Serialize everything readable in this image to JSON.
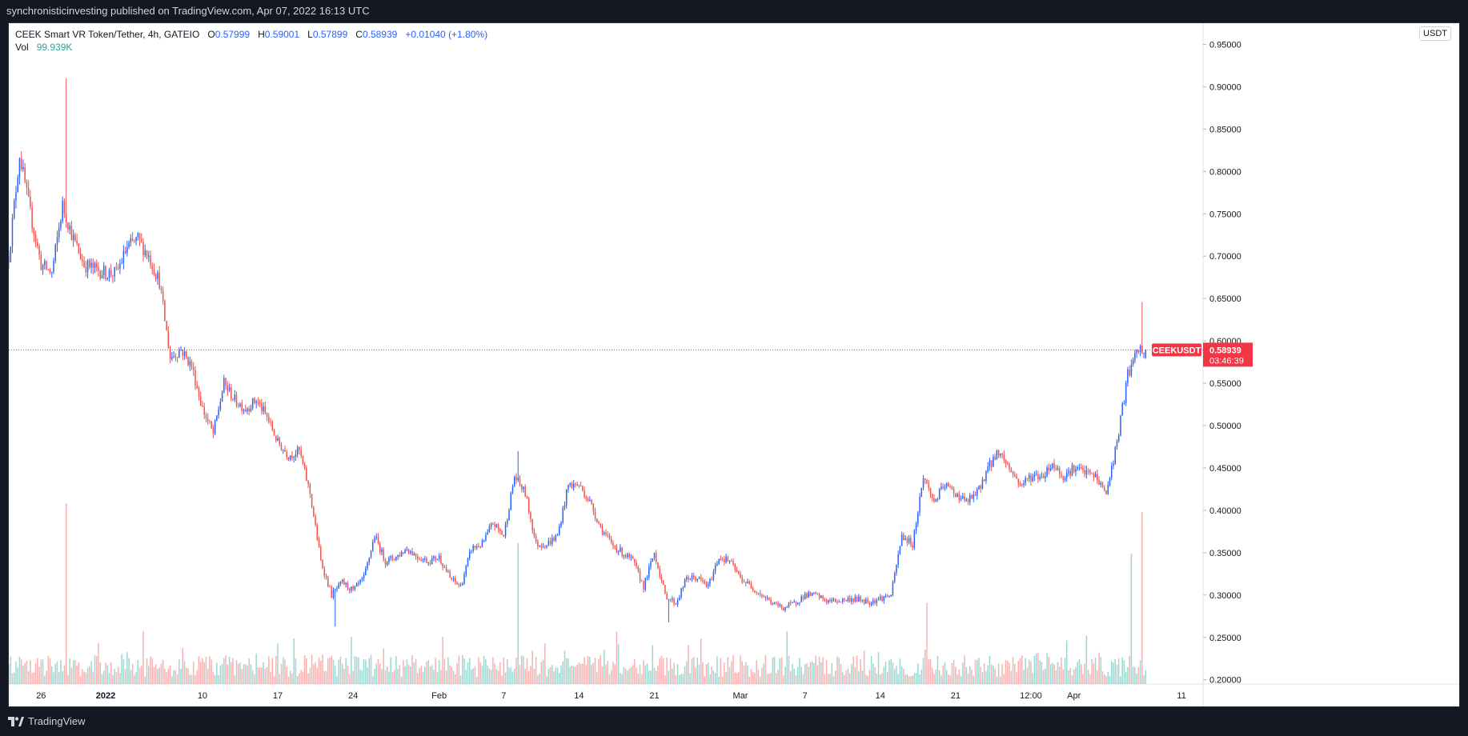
{
  "header": {
    "publisher_line": "synchronisticinvesting published on TradingView.com, Apr 07, 2022 16:13 UTC"
  },
  "legend": {
    "symbol_desc": "CEEK Smart VR Token/Tether, 4h, GATEIO",
    "o_label": "O",
    "o_value": "0.57999",
    "h_label": "H",
    "h_value": "0.59001",
    "l_label": "L",
    "l_value": "0.57899",
    "c_label": "C",
    "c_value": "0.58939",
    "change": "+0.01040 (+1.80%)",
    "vol_label": "Vol",
    "vol_value": "99.939K"
  },
  "price_badge": {
    "symbol": "CEEKUSDT",
    "price": "0.58939",
    "countdown": "03:46:39"
  },
  "footer": {
    "brand": "TradingView"
  },
  "colors": {
    "up": "#2962ff",
    "down": "#ef5350",
    "vol_up": "#26a69a",
    "vol_down": "#ef5350",
    "last_price": "#f23645",
    "text": "#131722",
    "page_bg": "#131722",
    "chart_bg": "#ffffff"
  },
  "chart_data": {
    "type": "candlestick",
    "title": "CEEK Smart VR Token/Tether, 4h, GATEIO",
    "currency_label": "USDT",
    "ylim": [
      0.195,
      0.975
    ],
    "y_ticks": [
      "0.20000",
      "0.25000",
      "0.30000",
      "0.35000",
      "0.40000",
      "0.45000",
      "0.50000",
      "0.55000",
      "0.60000",
      "0.65000",
      "0.70000",
      "0.75000",
      "0.80000",
      "0.85000",
      "0.90000",
      "0.95000"
    ],
    "x_ticks": [
      {
        "label": "26",
        "date": "2021-12-26"
      },
      {
        "label": "2022",
        "date": "2022-01-01"
      },
      {
        "label": "10",
        "date": "2022-01-10"
      },
      {
        "label": "17",
        "date": "2022-01-17"
      },
      {
        "label": "24",
        "date": "2022-01-24"
      },
      {
        "label": "Feb",
        "date": "2022-02-01"
      },
      {
        "label": "7",
        "date": "2022-02-07"
      },
      {
        "label": "14",
        "date": "2022-02-14"
      },
      {
        "label": "21",
        "date": "2022-02-21"
      },
      {
        "label": "Mar",
        "date": "2022-03-01"
      },
      {
        "label": "7",
        "date": "2022-03-07"
      },
      {
        "label": "14",
        "date": "2022-03-14"
      },
      {
        "label": "21",
        "date": "2022-03-21"
      },
      {
        "label": "12:00",
        "date": "2022-03-28"
      },
      {
        "label": "Apr",
        "date": "2022-04-01"
      },
      {
        "label": "11",
        "date": "2022-04-11"
      }
    ],
    "last_price": 0.58939,
    "price_keypoints": [
      [
        "2021-12-23",
        0.7
      ],
      [
        "2021-12-24",
        0.82
      ],
      [
        "2021-12-25",
        0.75
      ],
      [
        "2021-12-26",
        0.69
      ],
      [
        "2021-12-27",
        0.68
      ],
      [
        "2021-12-28",
        0.76
      ],
      [
        "2021-12-29",
        0.72
      ],
      [
        "2021-12-30",
        0.69
      ],
      [
        "2022-01-01",
        0.68
      ],
      [
        "2022-01-02",
        0.68
      ],
      [
        "2022-01-03",
        0.71
      ],
      [
        "2022-01-04",
        0.72
      ],
      [
        "2022-01-05",
        0.7
      ],
      [
        "2022-01-06",
        0.67
      ],
      [
        "2022-01-07",
        0.58
      ],
      [
        "2022-01-08",
        0.59
      ],
      [
        "2022-01-09",
        0.57
      ],
      [
        "2022-01-10",
        0.52
      ],
      [
        "2022-01-11",
        0.49
      ],
      [
        "2022-01-12",
        0.55
      ],
      [
        "2022-01-13",
        0.53
      ],
      [
        "2022-01-14",
        0.52
      ],
      [
        "2022-01-15",
        0.53
      ],
      [
        "2022-01-16",
        0.51
      ],
      [
        "2022-01-17",
        0.48
      ],
      [
        "2022-01-18",
        0.465
      ],
      [
        "2022-01-19",
        0.47
      ],
      [
        "2022-01-20",
        0.42
      ],
      [
        "2022-01-21",
        0.34
      ],
      [
        "2022-01-22",
        0.3
      ],
      [
        "2022-01-23",
        0.315
      ],
      [
        "2022-01-24",
        0.305
      ],
      [
        "2022-01-25",
        0.32
      ],
      [
        "2022-01-26",
        0.37
      ],
      [
        "2022-01-27",
        0.34
      ],
      [
        "2022-01-28",
        0.345
      ],
      [
        "2022-01-29",
        0.355
      ],
      [
        "2022-01-30",
        0.345
      ],
      [
        "2022-01-31",
        0.34
      ],
      [
        "2022-02-01",
        0.345
      ],
      [
        "2022-02-02",
        0.32
      ],
      [
        "2022-02-03",
        0.31
      ],
      [
        "2022-02-04",
        0.355
      ],
      [
        "2022-02-05",
        0.36
      ],
      [
        "2022-02-06",
        0.385
      ],
      [
        "2022-02-07",
        0.37
      ],
      [
        "2022-02-08",
        0.44
      ],
      [
        "2022-02-09",
        0.42
      ],
      [
        "2022-02-10",
        0.36
      ],
      [
        "2022-02-11",
        0.36
      ],
      [
        "2022-02-12",
        0.37
      ],
      [
        "2022-02-13",
        0.43
      ],
      [
        "2022-02-14",
        0.43
      ],
      [
        "2022-02-15",
        0.41
      ],
      [
        "2022-02-16",
        0.38
      ],
      [
        "2022-02-17",
        0.36
      ],
      [
        "2022-02-18",
        0.35
      ],
      [
        "2022-02-19",
        0.34
      ],
      [
        "2022-02-20",
        0.31
      ],
      [
        "2022-02-21",
        0.35
      ],
      [
        "2022-02-22",
        0.3
      ],
      [
        "2022-02-23",
        0.29
      ],
      [
        "2022-02-24",
        0.32
      ],
      [
        "2022-02-25",
        0.32
      ],
      [
        "2022-02-26",
        0.31
      ],
      [
        "2022-02-27",
        0.345
      ],
      [
        "2022-02-28",
        0.34
      ],
      [
        "2022-03-01",
        0.32
      ],
      [
        "2022-03-02",
        0.31
      ],
      [
        "2022-03-03",
        0.3
      ],
      [
        "2022-03-04",
        0.29
      ],
      [
        "2022-03-05",
        0.285
      ],
      [
        "2022-03-06",
        0.29
      ],
      [
        "2022-03-07",
        0.3
      ],
      [
        "2022-03-08",
        0.3
      ],
      [
        "2022-03-09",
        0.293
      ],
      [
        "2022-03-10",
        0.293
      ],
      [
        "2022-03-11",
        0.295
      ],
      [
        "2022-03-12",
        0.295
      ],
      [
        "2022-03-13",
        0.292
      ],
      [
        "2022-03-14",
        0.296
      ],
      [
        "2022-03-15",
        0.3
      ],
      [
        "2022-03-16",
        0.37
      ],
      [
        "2022-03-17",
        0.36
      ],
      [
        "2022-03-18",
        0.44
      ],
      [
        "2022-03-19",
        0.41
      ],
      [
        "2022-03-20",
        0.43
      ],
      [
        "2022-03-21",
        0.42
      ],
      [
        "2022-03-22",
        0.41
      ],
      [
        "2022-03-23",
        0.42
      ],
      [
        "2022-03-24",
        0.45
      ],
      [
        "2022-03-25",
        0.47
      ],
      [
        "2022-03-26",
        0.45
      ],
      [
        "2022-03-27",
        0.43
      ],
      [
        "2022-03-28",
        0.44
      ],
      [
        "2022-03-29",
        0.44
      ],
      [
        "2022-03-30",
        0.455
      ],
      [
        "2022-03-31",
        0.44
      ],
      [
        "2022-04-01",
        0.45
      ],
      [
        "2022-04-02",
        0.445
      ],
      [
        "2022-04-03",
        0.44
      ],
      [
        "2022-04-04",
        0.42
      ],
      [
        "2022-04-05",
        0.48
      ],
      [
        "2022-04-06",
        0.56
      ],
      [
        "2022-04-07",
        0.58939
      ]
    ],
    "notable_wicks": [
      {
        "date": "2021-12-28",
        "high": 0.91
      },
      {
        "date": "2022-01-22",
        "low": 0.263
      },
      {
        "date": "2022-02-08",
        "high": 0.47
      },
      {
        "date": "2022-02-22",
        "low": 0.268
      },
      {
        "date": "2022-04-07",
        "high": 0.646
      }
    ],
    "volume_scale_note": "relative",
    "volume_spikes": [
      {
        "date": "2021-12-28",
        "value": 1.0
      },
      {
        "date": "2022-02-08",
        "value": 0.78
      },
      {
        "date": "2022-04-07",
        "value": 0.95
      },
      {
        "date": "2022-04-06",
        "value": 0.72
      },
      {
        "date": "2022-03-18",
        "value": 0.45
      }
    ]
  }
}
